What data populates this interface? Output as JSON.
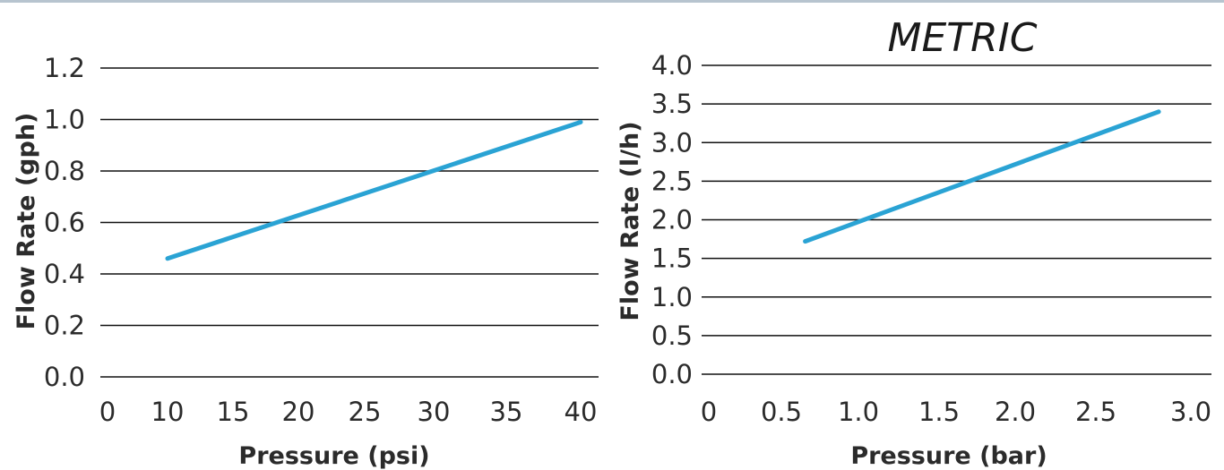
{
  "colors": {
    "line": "#2aa3d4",
    "grid": "#111111",
    "text": "#2b2b2b",
    "top_rule": "#b7c4cf"
  },
  "chart_data": [
    {
      "type": "line",
      "title": "",
      "xlabel": "Pressure (psi)",
      "ylabel": "Flow Rate (gph)",
      "xlim": [
        0,
        40
      ],
      "ylim": [
        0.0,
        1.2
      ],
      "x_ticks": [
        "0",
        "10",
        "15",
        "20",
        "25",
        "30",
        "35",
        "40"
      ],
      "y_ticks": [
        "0.0",
        "0.2",
        "0.4",
        "0.6",
        "0.8",
        "1.0",
        "1.2"
      ],
      "grid": true,
      "series": [
        {
          "x": [
            10,
            40
          ],
          "y": [
            0.46,
            0.99
          ]
        }
      ]
    },
    {
      "type": "line",
      "title": "METRIC",
      "xlabel": "Pressure (bar)",
      "ylabel": "Flow Rate (l/h)",
      "xlim": [
        0,
        3.0
      ],
      "ylim": [
        0.0,
        4.0
      ],
      "x_ticks": [
        "0",
        "0.5",
        "1.0",
        "1.5",
        "2.0",
        "2.5",
        "3.0"
      ],
      "y_ticks": [
        "0.0",
        "0.5",
        "1.0",
        "1.5",
        "2.0",
        "2.5",
        "3.0",
        "3.5",
        "4.0"
      ],
      "grid": true,
      "series": [
        {
          "x": [
            0.6,
            2.8
          ],
          "y": [
            1.72,
            3.4
          ]
        }
      ]
    }
  ]
}
